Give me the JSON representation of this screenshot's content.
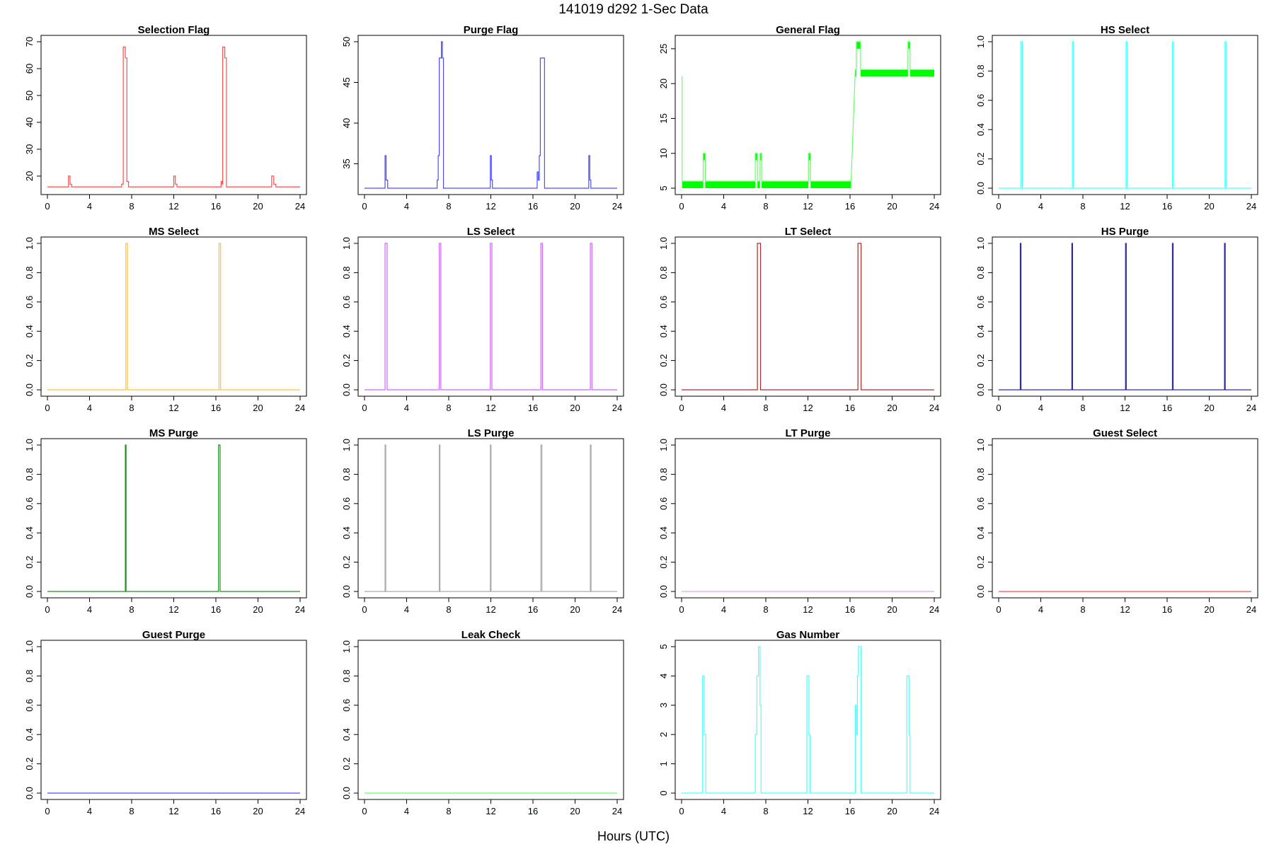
{
  "figure": {
    "title": "141019   d292   1-Sec Data",
    "xlabel": "Hours (UTC)"
  },
  "chart_data": [
    {
      "type": "line",
      "title": "Selection Flag",
      "color": "#ff4c4c",
      "xlim": [
        0,
        24
      ],
      "xticks": [
        "0",
        "4",
        "8",
        "12",
        "16",
        "20",
        "24"
      ],
      "ylim": [
        15.5,
        70
      ],
      "yticks": [
        "20",
        "30",
        "40",
        "50",
        "60",
        "70"
      ],
      "x": [
        0,
        2,
        2,
        2.15,
        2.15,
        2.3,
        2.3,
        7.05,
        7.05,
        7.2,
        7.2,
        7.4,
        7.4,
        7.55,
        7.55,
        7.7,
        7.7,
        12.0,
        12.0,
        12.15,
        12.15,
        12.3,
        12.3,
        16.5,
        16.5,
        16.6,
        16.6,
        16.65,
        16.65,
        16.85,
        16.85,
        17.0,
        17.0,
        21.3,
        21.3,
        21.5,
        21.5,
        21.7,
        21.7,
        24
      ],
      "y": [
        16,
        16,
        20,
        20,
        17,
        17,
        16,
        16,
        17,
        17,
        68,
        68,
        64,
        64,
        18,
        18,
        16,
        16,
        20,
        20,
        17,
        17,
        16,
        16,
        18,
        18,
        17,
        17,
        68,
        68,
        64,
        64,
        16,
        16,
        20,
        20,
        17,
        17,
        16,
        16
      ]
    },
    {
      "type": "line",
      "title": "Purge Flag",
      "color": "#4c4cff",
      "xlim": [
        0,
        24
      ],
      "xticks": [
        "0",
        "4",
        "8",
        "12",
        "16",
        "20",
        "24"
      ],
      "ylim": [
        32,
        50
      ],
      "yticks": [
        "35",
        "40",
        "45",
        "50"
      ],
      "x": [
        0,
        1.95,
        1.95,
        2.05,
        2.05,
        2.2,
        2.2,
        6.9,
        6.9,
        7.0,
        7.0,
        7.1,
        7.1,
        7.3,
        7.3,
        7.4,
        7.4,
        7.5,
        7.5,
        11.95,
        11.95,
        12.05,
        12.05,
        12.15,
        12.15,
        16.4,
        16.4,
        16.5,
        16.5,
        16.6,
        16.6,
        16.7,
        16.7,
        16.8,
        16.8,
        17.1,
        17.1,
        21.3,
        21.3,
        21.4,
        21.4,
        21.5,
        21.5,
        24
      ],
      "y": [
        32,
        32,
        36,
        36,
        33,
        33,
        32,
        32,
        33,
        33,
        36,
        36,
        48,
        48,
        50,
        50,
        48,
        48,
        32,
        32,
        36,
        36,
        33,
        33,
        32,
        32,
        34,
        34,
        33,
        33,
        36,
        36,
        48,
        48,
        48,
        48,
        32,
        32,
        36,
        36,
        33,
        33,
        32,
        32
      ]
    },
    {
      "type": "line",
      "title": "General Flag",
      "color": "#66ff66",
      "band_color": "#00ff00",
      "xlim": [
        0,
        24
      ],
      "xticks": [
        "0",
        "4",
        "8",
        "12",
        "16",
        "20",
        "24"
      ],
      "ylim": [
        5,
        26
      ],
      "yticks": [
        "5",
        "10",
        "15",
        "20",
        "25"
      ],
      "x": [
        0,
        0.05,
        0.05,
        2.05,
        2.05,
        2.25,
        2.25,
        7.0,
        7.0,
        7.2,
        7.2,
        7.45,
        7.45,
        7.6,
        7.6,
        12.05,
        12.05,
        12.25,
        12.25,
        16.1,
        16.5,
        16.6,
        16.6,
        17.0,
        17.0,
        21.5,
        21.5,
        21.7,
        21.7,
        24
      ],
      "y": [
        21,
        21,
        6,
        6,
        10,
        10,
        6,
        6,
        10,
        10,
        6,
        6,
        10,
        10,
        6,
        6,
        10,
        10,
        6,
        6,
        22,
        22,
        26,
        26,
        22,
        22,
        26,
        26,
        22,
        22
      ],
      "bands": [
        {
          "x": [
            0.05,
            2.05
          ],
          "y": [
            5,
            6
          ]
        },
        {
          "x": [
            2.05,
            2.25
          ],
          "y": [
            9,
            10
          ]
        },
        {
          "x": [
            2.25,
            7.0
          ],
          "y": [
            5,
            6
          ]
        },
        {
          "x": [
            7.0,
            7.2
          ],
          "y": [
            9,
            10
          ]
        },
        {
          "x": [
            7.2,
            7.45
          ],
          "y": [
            5,
            6
          ]
        },
        {
          "x": [
            7.45,
            7.6
          ],
          "y": [
            9,
            10
          ]
        },
        {
          "x": [
            7.6,
            12.05
          ],
          "y": [
            5,
            6
          ]
        },
        {
          "x": [
            12.05,
            12.25
          ],
          "y": [
            9,
            10
          ]
        },
        {
          "x": [
            12.25,
            16.1
          ],
          "y": [
            5,
            6
          ]
        },
        {
          "x": [
            16.5,
            16.6
          ],
          "y": [
            21,
            22
          ]
        },
        {
          "x": [
            16.6,
            17.0
          ],
          "y": [
            25,
            26
          ]
        },
        {
          "x": [
            17.0,
            21.5
          ],
          "y": [
            21,
            22
          ]
        },
        {
          "x": [
            21.5,
            21.7
          ],
          "y": [
            25,
            26
          ]
        },
        {
          "x": [
            21.7,
            24
          ],
          "y": [
            21,
            22
          ]
        }
      ]
    },
    {
      "type": "line",
      "title": "HS Select",
      "color": "#4cffff",
      "xlim": [
        0,
        24
      ],
      "xticks": [
        "0",
        "4",
        "8",
        "12",
        "16",
        "20",
        "24"
      ],
      "ylim": [
        0,
        1
      ],
      "yticks": [
        "0.0",
        "0.2",
        "0.4",
        "0.6",
        "0.8",
        "1.0"
      ],
      "pulses": [
        [
          2.1,
          2.25
        ],
        [
          7.0,
          7.1
        ],
        [
          12.1,
          12.2
        ],
        [
          16.5,
          16.6
        ],
        [
          21.5,
          21.6
        ]
      ]
    },
    {
      "type": "line",
      "title": "MS Select",
      "color": "#ffbf33",
      "xlim": [
        0,
        24
      ],
      "xticks": [
        "0",
        "4",
        "8",
        "12",
        "16",
        "20",
        "24"
      ],
      "ylim": [
        0,
        1
      ],
      "yticks": [
        "0.0",
        "0.2",
        "0.4",
        "0.6",
        "0.8",
        "1.0"
      ],
      "pulses": [
        [
          7.45,
          7.6
        ],
        [
          16.3,
          16.45
        ]
      ]
    },
    {
      "type": "line",
      "title": "LS Select",
      "color": "#cc66ff",
      "xlim": [
        0,
        24
      ],
      "xticks": [
        "0",
        "4",
        "8",
        "12",
        "16",
        "20",
        "24"
      ],
      "ylim": [
        0,
        1
      ],
      "yticks": [
        "0.0",
        "0.2",
        "0.4",
        "0.6",
        "0.8",
        "1.0"
      ],
      "pulses": [
        [
          1.95,
          2.15
        ],
        [
          7.1,
          7.25
        ],
        [
          11.95,
          12.1
        ],
        [
          16.75,
          16.9
        ],
        [
          21.45,
          21.6
        ]
      ]
    },
    {
      "type": "line",
      "title": "LT Select",
      "color": "#a52a2a",
      "xlim": [
        0,
        24
      ],
      "xticks": [
        "0",
        "4",
        "8",
        "12",
        "16",
        "20",
        "24"
      ],
      "ylim": [
        0,
        1
      ],
      "yticks": [
        "0.0",
        "0.2",
        "0.4",
        "0.6",
        "0.8",
        "1.0"
      ],
      "pulses": [
        [
          7.2,
          7.5
        ],
        [
          16.75,
          17.05
        ]
      ]
    },
    {
      "type": "line",
      "title": "HS Purge",
      "color": "#2c2ca0",
      "xlim": [
        0,
        24
      ],
      "xticks": [
        "0",
        "4",
        "8",
        "12",
        "16",
        "20",
        "24"
      ],
      "ylim": [
        0,
        1
      ],
      "yticks": [
        "0.0",
        "0.2",
        "0.4",
        "0.6",
        "0.8",
        "1.0"
      ],
      "pulses": [
        [
          2.05,
          2.12
        ],
        [
          6.95,
          7.02
        ],
        [
          12.05,
          12.12
        ],
        [
          16.5,
          16.57
        ],
        [
          21.45,
          21.52
        ]
      ]
    },
    {
      "type": "line",
      "title": "MS Purge",
      "color": "#228b22",
      "xlim": [
        0,
        24
      ],
      "xticks": [
        "0",
        "4",
        "8",
        "12",
        "16",
        "20",
        "24"
      ],
      "ylim": [
        0,
        1
      ],
      "yticks": [
        "0.0",
        "0.2",
        "0.4",
        "0.6",
        "0.8",
        "1.0"
      ],
      "pulses": [
        [
          7.4,
          7.47
        ],
        [
          16.25,
          16.4
        ]
      ]
    },
    {
      "type": "line",
      "title": "LS Purge",
      "color": "#aaaaaa",
      "xlim": [
        0,
        24
      ],
      "xticks": [
        "0",
        "4",
        "8",
        "12",
        "16",
        "20",
        "24"
      ],
      "ylim": [
        0,
        1
      ],
      "yticks": [
        "0.0",
        "0.2",
        "0.4",
        "0.6",
        "0.8",
        "1.0"
      ],
      "pulses": [
        [
          1.95,
          2.02
        ],
        [
          7.1,
          7.17
        ],
        [
          11.95,
          12.02
        ],
        [
          16.75,
          16.85
        ],
        [
          21.45,
          21.52
        ]
      ]
    },
    {
      "type": "line",
      "title": "LT Purge",
      "color": "#e0a0ff",
      "xlim": [
        0,
        24
      ],
      "xticks": [
        "0",
        "4",
        "8",
        "12",
        "16",
        "20",
        "24"
      ],
      "ylim": [
        0,
        1
      ],
      "yticks": [
        "0.0",
        "0.2",
        "0.4",
        "0.6",
        "0.8",
        "1.0"
      ],
      "pulses": []
    },
    {
      "type": "line",
      "title": "Guest Select",
      "color": "#ff4c4c",
      "xlim": [
        0,
        24
      ],
      "xticks": [
        "0",
        "4",
        "8",
        "12",
        "16",
        "20",
        "24"
      ],
      "ylim": [
        0,
        1
      ],
      "yticks": [
        "0.0",
        "0.2",
        "0.4",
        "0.6",
        "0.8",
        "1.0"
      ],
      "pulses": []
    },
    {
      "type": "line",
      "title": "Guest Purge",
      "color": "#4c4cff",
      "xlim": [
        0,
        24
      ],
      "xticks": [
        "0",
        "4",
        "8",
        "12",
        "16",
        "20",
        "24"
      ],
      "ylim": [
        0,
        1
      ],
      "yticks": [
        "0.0",
        "0.2",
        "0.4",
        "0.6",
        "0.8",
        "1.0"
      ],
      "pulses": []
    },
    {
      "type": "line",
      "title": "Leak Check",
      "color": "#66ff66",
      "xlim": [
        0,
        24
      ],
      "xticks": [
        "0",
        "4",
        "8",
        "12",
        "16",
        "20",
        "24"
      ],
      "ylim": [
        0,
        1
      ],
      "yticks": [
        "0.0",
        "0.2",
        "0.4",
        "0.6",
        "0.8",
        "1.0"
      ],
      "pulses": []
    },
    {
      "type": "line",
      "title": "Gas Number",
      "color": "#4cffff",
      "xlim": [
        0,
        24
      ],
      "xticks": [
        "0",
        "4",
        "8",
        "12",
        "16",
        "20",
        "24"
      ],
      "ylim": [
        0,
        5
      ],
      "yticks": [
        "0",
        "1",
        "2",
        "3",
        "4",
        "5"
      ],
      "x": [
        0,
        2.0,
        2.0,
        2.15,
        2.15,
        2.3,
        2.3,
        7.0,
        7.0,
        7.15,
        7.15,
        7.3,
        7.3,
        7.45,
        7.45,
        7.55,
        7.55,
        11.9,
        11.9,
        12.1,
        12.1,
        12.2,
        12.2,
        16.5,
        16.5,
        16.6,
        16.6,
        16.7,
        16.7,
        16.8,
        16.8,
        17.05,
        17.05,
        21.4,
        21.4,
        21.6,
        21.6,
        21.7,
        21.7,
        24
      ],
      "y": [
        0,
        0,
        4,
        4,
        2,
        2,
        0,
        0,
        2,
        2,
        4,
        4,
        5,
        5,
        3,
        3,
        0,
        0,
        4,
        4,
        2,
        2,
        0,
        0,
        3,
        3,
        2,
        2,
        4,
        4,
        5,
        5,
        0,
        0,
        4,
        4,
        2,
        2,
        0,
        0
      ]
    }
  ]
}
